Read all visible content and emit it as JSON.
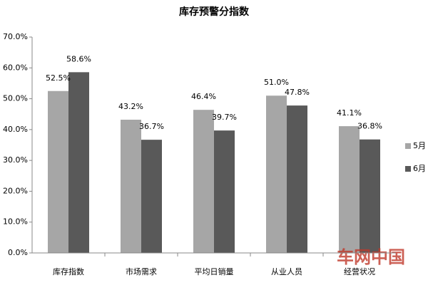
{
  "chart_data": {
    "type": "bar",
    "title": "库存预警分指数",
    "categories": [
      "库存指数",
      "市场需求",
      "平均日销量",
      "从业人员",
      "经营状况"
    ],
    "series": [
      {
        "name": "5月",
        "color": "#a6a6a6",
        "values": [
          52.5,
          43.2,
          46.4,
          51.0,
          41.1
        ],
        "value_labels": [
          "52.5%",
          "43.2%",
          "46.4%",
          "51.0%",
          "41.1%"
        ]
      },
      {
        "name": "6月",
        "color": "#595959",
        "values": [
          58.6,
          36.7,
          39.7,
          47.8,
          36.8
        ],
        "value_labels": [
          "58.6%",
          "36.7%",
          "39.7%",
          "47.8%",
          "36.8%"
        ]
      }
    ],
    "ylim": [
      0,
      70
    ],
    "yticks": [
      {
        "value": 0,
        "label": "0.0%"
      },
      {
        "value": 10,
        "label": "10.0%"
      },
      {
        "value": 20,
        "label": "20.0%"
      },
      {
        "value": 30,
        "label": "30.0%"
      },
      {
        "value": 40,
        "label": "40.0%"
      },
      {
        "value": 50,
        "label": "50.0%"
      },
      {
        "value": 60,
        "label": "60.0%"
      },
      {
        "value": 70,
        "label": "70.0%"
      }
    ],
    "grid": false,
    "legend": "right",
    "watermark": "车网中国"
  }
}
